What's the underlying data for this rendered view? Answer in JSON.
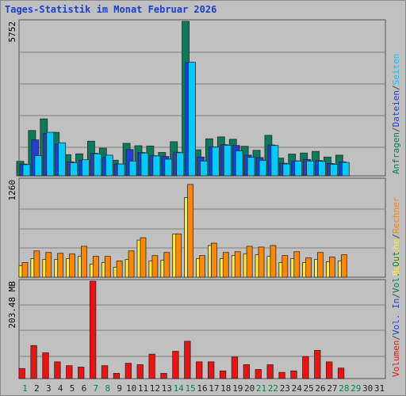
{
  "title": "Tages-Statistik im Monat Februar 2026",
  "colors": {
    "anfragen": "#0a7a5a",
    "dateien": "#1f3fd0",
    "seiten": "#00ccff",
    "besuche": "#ffee33",
    "rechner": "#ff8800",
    "volumen": "#ee1111",
    "sep": "#444444",
    "weekend": "#008844",
    "weekday": "#222222"
  },
  "chart_data": [
    {
      "type": "bar",
      "panel": "top",
      "max_label": "5752",
      "categories": [
        "1",
        "2",
        "3",
        "4",
        "5",
        "6",
        "7",
        "8",
        "9",
        "10",
        "11",
        "12",
        "13",
        "14",
        "15",
        "16",
        "17",
        "18",
        "19",
        "20",
        "21",
        "22",
        "23",
        "24",
        "25",
        "26",
        "27",
        "28",
        "29",
        "30",
        "31"
      ],
      "ylim": [
        0,
        5752
      ],
      "series": [
        {
          "name": "Anfragen",
          "color_key": "anfragen",
          "values": [
            540,
            1690,
            2120,
            1620,
            790,
            820,
            1290,
            1030,
            580,
            1210,
            1120,
            1110,
            870,
            1270,
            5752,
            970,
            1380,
            1450,
            1360,
            1100,
            950,
            1510,
            660,
            810,
            850,
            910,
            700,
            770,
            null,
            null,
            null
          ]
        },
        {
          "name": "Dateien",
          "color_key": "dateien",
          "values": [
            440,
            1340,
            1580,
            1180,
            520,
            580,
            840,
            690,
            440,
            980,
            870,
            750,
            720,
            880,
            4220,
            700,
            1080,
            1160,
            1130,
            770,
            680,
            1150,
            470,
            560,
            610,
            570,
            460,
            520,
            null,
            null,
            null
          ]
        },
        {
          "name": "Seiten",
          "color_key": "seiten",
          "values": [
            420,
            750,
            1620,
            1230,
            490,
            600,
            820,
            770,
            440,
            550,
            850,
            740,
            620,
            860,
            4230,
            550,
            1070,
            1140,
            930,
            690,
            580,
            1130,
            440,
            550,
            550,
            540,
            430,
            500,
            null,
            null,
            null
          ]
        }
      ],
      "legend": [
        {
          "label": "Anfragen",
          "color_key": "anfragen"
        },
        {
          "label": "Dateien",
          "color_key": "dateien"
        },
        {
          "label": "Seiten",
          "color_key": "seiten"
        }
      ]
    },
    {
      "type": "bar",
      "panel": "middle",
      "max_label": "1260",
      "categories": [
        "1",
        "2",
        "3",
        "4",
        "5",
        "6",
        "7",
        "8",
        "9",
        "10",
        "11",
        "12",
        "13",
        "14",
        "15",
        "16",
        "17",
        "18",
        "19",
        "20",
        "21",
        "22",
        "23",
        "24",
        "25",
        "26",
        "27",
        "28",
        "29",
        "30",
        "31"
      ],
      "ylim": [
        0,
        1260
      ],
      "series": [
        {
          "name": "Besuche",
          "color_key": "besuche",
          "values": [
            150,
            240,
            230,
            230,
            240,
            270,
            170,
            190,
            130,
            230,
            480,
            210,
            220,
            560,
            1030,
            240,
            410,
            240,
            280,
            300,
            290,
            270,
            190,
            240,
            190,
            230,
            200,
            210,
            null,
            null,
            null
          ]
        },
        {
          "name": "Rechner",
          "color_key": "rechner",
          "values": [
            190,
            340,
            320,
            310,
            300,
            400,
            270,
            270,
            210,
            340,
            510,
            280,
            320,
            560,
            1200,
            280,
            440,
            320,
            330,
            400,
            390,
            410,
            280,
            330,
            250,
            320,
            260,
            290,
            null,
            null,
            null
          ]
        }
      ],
      "legend": [
        {
          "label": "Besuche",
          "color_key": "besuche"
        },
        {
          "label": "Rechner",
          "color_key": "rechner"
        }
      ]
    },
    {
      "type": "bar",
      "panel": "bottom",
      "max_label": "203.48 MB",
      "categories": [
        "1",
        "2",
        "3",
        "4",
        "5",
        "6",
        "7",
        "8",
        "9",
        "10",
        "11",
        "12",
        "13",
        "14",
        "15",
        "16",
        "17",
        "18",
        "19",
        "20",
        "21",
        "22",
        "23",
        "24",
        "25",
        "26",
        "27",
        "28",
        "29",
        "30",
        "31"
      ],
      "ylim": [
        0,
        203.48
      ],
      "series": [
        {
          "name": "Volumen",
          "color_key": "volumen",
          "values": [
            21,
            69,
            54,
            35,
            27,
            24,
            203.48,
            27,
            11,
            32,
            29,
            51,
            11,
            57,
            78,
            35,
            35,
            16,
            45,
            29,
            19,
            29,
            13,
            16,
            46,
            59,
            35,
            22,
            null,
            null,
            null
          ]
        }
      ],
      "legend": [
        {
          "label": "Volumen",
          "color_key": "volumen"
        },
        {
          "label": "Vol. In",
          "color_key": "dateien"
        },
        {
          "label": "Vol. Out",
          "color_key": "anfragen"
        }
      ]
    }
  ],
  "weekend_days": [
    "1",
    "7",
    "8",
    "14",
    "15",
    "21",
    "22",
    "28",
    "29"
  ]
}
